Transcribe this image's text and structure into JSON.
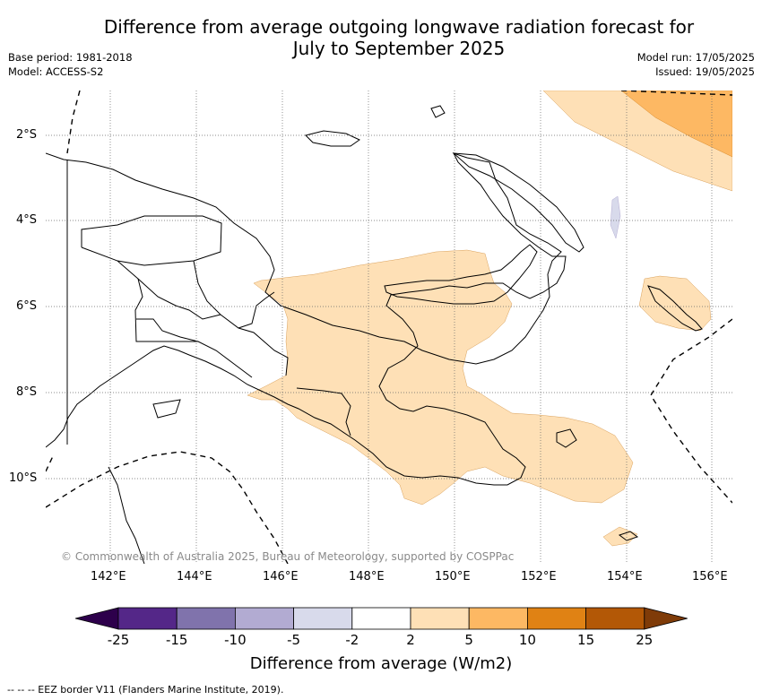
{
  "title": {
    "line1": "Difference from average outgoing longwave radiation forecast for",
    "line2": "July to September 2025"
  },
  "meta": {
    "base_period": "Base period: 1981-2018",
    "model": "Model: ACCESS-S2",
    "model_run": "Model run: 17/05/2025",
    "issued": "Issued: 19/05/2025"
  },
  "map": {
    "lat_labels": [
      "2°S",
      "4°S",
      "6°S",
      "8°S",
      "10°S"
    ],
    "lon_labels": [
      "142°E",
      "144°E",
      "146°E",
      "148°E",
      "150°E",
      "152°E",
      "154°E",
      "156°E"
    ],
    "copyright": "© Commonwealth of Australia 2025, Bureau of Meteorology, supported by COSPPac"
  },
  "colorbar": {
    "labels": [
      "-25",
      "-15",
      "-10",
      "-5",
      "-2",
      "2",
      "5",
      "10",
      "15",
      "25"
    ],
    "colors": [
      "#2d004b",
      "#542788",
      "#8073ac",
      "#b2abd2",
      "#d8daeb",
      "#ffffff",
      "#fee0b6",
      "#fdb863",
      "#e08214",
      "#b35806",
      "#7f3b08"
    ],
    "title": "Difference from average (W/m2)"
  },
  "legend_note": "--  --  -- EEZ border V11 (Flanders Marine Institute, 2019)."
}
